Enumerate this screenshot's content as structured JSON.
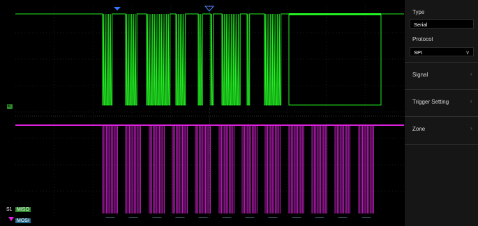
{
  "trigger_panel": {
    "type_label": "Type",
    "type_value": "Serial",
    "protocol_label": "Protocol",
    "protocol_value": "SPI",
    "menu": [
      {
        "label": "Signal"
      },
      {
        "label": "Trigger Setting"
      },
      {
        "label": "Zone"
      }
    ]
  },
  "scope": {
    "trace_labels": {
      "s1": "S1",
      "miso": "MISO",
      "mosi": "MOSI",
      "edge_marker": "E"
    },
    "decode_bytes": [
      "'S'",
      "'I'",
      "'G'",
      "'L'",
      "'E'",
      "'N'",
      "'T'",
      "' '",
      "' '",
      "' '",
      "' '",
      "' '"
    ],
    "colors": {
      "miso": "#22ee22",
      "mosi": "#dd22dd",
      "decode": "#66bbdd",
      "marker": "#3377ff"
    }
  }
}
